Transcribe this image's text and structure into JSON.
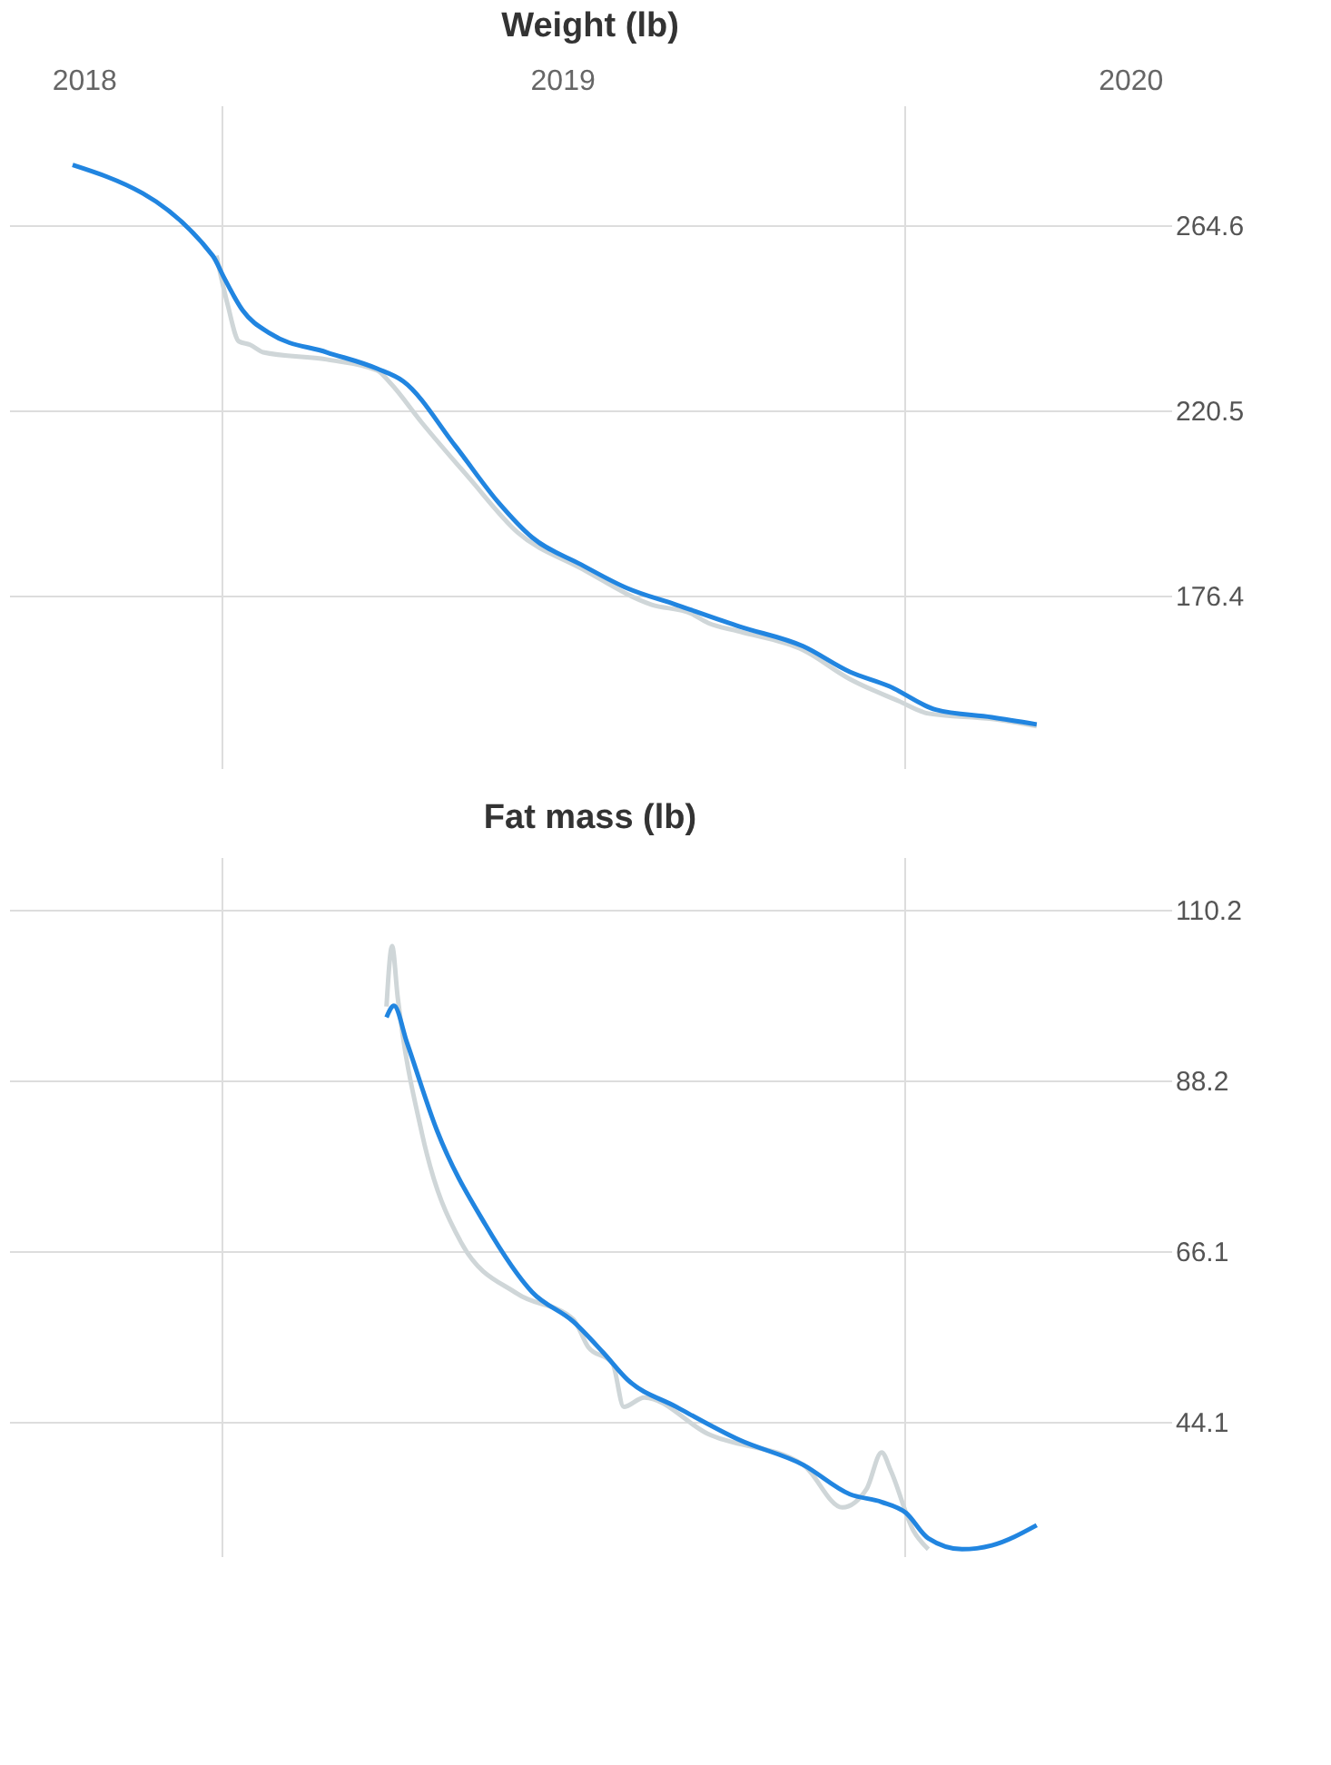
{
  "chart_data": [
    {
      "type": "line",
      "title": "Weight (lb)",
      "xlim": [
        "2018-09-09",
        "2020-05-23"
      ],
      "xticks": [
        {
          "value": "2018-10-19",
          "label": "2018"
        },
        {
          "value": "2019-01-01",
          "label": null
        },
        {
          "value": "2019-07-02",
          "label": "2019"
        },
        {
          "value": "2020-01-01",
          "label": null
        },
        {
          "value": "2020-05-01",
          "label": "2020"
        }
      ],
      "ylim": [
        135.3,
        293.1
      ],
      "yticks": [
        176.4,
        220.5,
        264.6
      ],
      "grid": true,
      "series": [
        {
          "color": "#cfd6d8",
          "x": [
            "2018-12-29",
            "2019-01-04",
            "2019-01-10",
            "2019-01-16",
            "2019-01-23",
            "2019-02-26",
            "2019-03-25",
            "2019-04-01",
            "2019-04-18",
            "2019-05-13",
            "2019-06-08",
            "2019-07-12",
            "2019-08-19",
            "2019-09-09",
            "2019-09-18",
            "2019-10-05",
            "2019-11-08",
            "2019-12-03",
            "2019-12-29",
            "2020-01-14",
            "2020-02-17",
            "2020-03-12"
          ],
          "values": [
            257.3,
            245.6,
            236.9,
            236.1,
            234.3,
            232.6,
            230.0,
            227.0,
            217.5,
            204.5,
            191.5,
            182.9,
            174.2,
            172.1,
            169.9,
            167.8,
            163.4,
            156.5,
            151.3,
            148.3,
            147.0,
            145.3
          ]
        },
        {
          "color": "#2185e0",
          "x": [
            "2018-10-13",
            "2018-12-27",
            "2019-01-02",
            "2019-01-12",
            "2019-01-27",
            "2019-02-26",
            "2019-03-25",
            "2019-04-08",
            "2019-05-06",
            "2019-05-29",
            "2019-06-16",
            "2019-07-12",
            "2019-08-06",
            "2019-09-01",
            "2019-10-05",
            "2019-11-08",
            "2019-12-03",
            "2019-12-24",
            "2020-01-18",
            "2020-02-17",
            "2020-03-12"
          ],
          "values": [
            278.9,
            257.3,
            252.1,
            244.3,
            238.7,
            234.3,
            230.4,
            227.4,
            211.9,
            198.5,
            190.2,
            183.8,
            178.1,
            174.2,
            169.0,
            164.3,
            158.2,
            154.8,
            149.2,
            147.4,
            145.7
          ]
        }
      ]
    },
    {
      "type": "line",
      "title": "Fat mass (lb)",
      "xlim": [
        "2018-09-09",
        "2020-05-23"
      ],
      "xticks": [
        {
          "value": "2019-01-01",
          "label": null
        },
        {
          "value": "2020-01-01",
          "label": null
        }
      ],
      "tick_labels": "y",
      "ylim": [
        26.7,
        117.0
      ],
      "yticks": [
        44.1,
        66.1,
        88.2,
        110.2
      ],
      "grid": true,
      "series": [
        {
          "color": "#cfd6d8",
          "x": [
            "2019-03-30",
            "2019-04-02",
            "2019-04-05",
            "2019-04-18",
            "2019-05-09",
            "2019-06-08",
            "2019-07-08",
            "2019-07-16",
            "2019-07-29",
            "2019-08-04",
            "2019-08-15",
            "2019-09-18",
            "2019-11-08",
            "2019-11-29",
            "2019-12-12",
            "2019-12-20",
            "2019-12-25",
            "2020-01-06",
            "2020-01-14"
          ],
          "values": [
            97.7,
            105.5,
            98.9,
            81.3,
            67.2,
            60.6,
            57.3,
            53.7,
            51.6,
            46.0,
            47.2,
            42.5,
            38.5,
            33.0,
            35.4,
            40.1,
            37.7,
            30.0,
            27.6
          ]
        },
        {
          "color": "#2185e0",
          "x": [
            "2019-03-30",
            "2019-04-03",
            "2019-04-10",
            "2019-04-26",
            "2019-05-22",
            "2019-06-16",
            "2019-07-08",
            "2019-07-24",
            "2019-08-06",
            "2019-09-01",
            "2019-10-05",
            "2019-11-08",
            "2019-12-03",
            "2019-12-20",
            "2020-01-02",
            "2020-01-14",
            "2020-02-01",
            "2020-02-17",
            "2020-03-12"
          ],
          "values": [
            96.3,
            97.8,
            93.0,
            81.7,
            69.5,
            60.8,
            57.0,
            53.0,
            49.5,
            46.0,
            41.7,
            38.5,
            34.7,
            33.7,
            32.3,
            29.0,
            27.6,
            28.1,
            30.7
          ]
        }
      ]
    }
  ]
}
